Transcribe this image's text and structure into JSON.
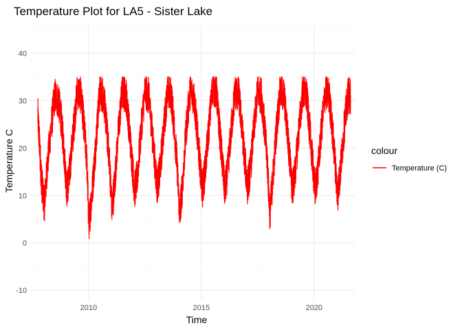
{
  "chart_data": {
    "type": "line",
    "title": "Temperature Plot for LA5 - Sister Lake",
    "xlabel": "Time",
    "ylabel": "Temperature C",
    "xlim": [
      "2007-06-01",
      "2021-11-01"
    ],
    "ylim": [
      -12,
      46
    ],
    "x_ticks": [
      "2010",
      "2015",
      "2020"
    ],
    "y_ticks": [
      "-10",
      "0",
      "10",
      "20",
      "30",
      "40"
    ],
    "grid": true,
    "legend": {
      "title": "colour",
      "position": "right",
      "entries": [
        {
          "label": "Temperature (C)",
          "color": "#ff0000"
        }
      ]
    },
    "series": [
      {
        "name": "Temperature (C)",
        "color": "#ff0000",
        "x": [
          "2007-10-01",
          "2007-11-01",
          "2007-12-01",
          "2008-01-15",
          "2008-03-01",
          "2008-05-01",
          "2008-07-01",
          "2008-09-01",
          "2008-10-15",
          "2008-12-01",
          "2009-01-15",
          "2009-03-01",
          "2009-05-01",
          "2009-07-01",
          "2009-09-01",
          "2009-10-15",
          "2009-12-01",
          "2010-01-05",
          "2010-02-15",
          "2010-04-01",
          "2010-05-15",
          "2010-07-01",
          "2010-09-01",
          "2010-10-15",
          "2010-12-01",
          "2011-01-15",
          "2011-03-01",
          "2011-05-01",
          "2011-07-01",
          "2011-09-01",
          "2011-10-15",
          "2011-12-01",
          "2012-01-15",
          "2012-03-01",
          "2012-05-01",
          "2012-07-01",
          "2012-09-01",
          "2012-10-15",
          "2012-12-01",
          "2013-01-15",
          "2013-03-01",
          "2013-05-01",
          "2013-07-01",
          "2013-09-01",
          "2013-10-15",
          "2013-12-01",
          "2014-01-15",
          "2014-03-01",
          "2014-05-01",
          "2014-07-01",
          "2014-09-01",
          "2014-10-15",
          "2014-12-01",
          "2015-01-15",
          "2015-03-01",
          "2015-05-01",
          "2015-07-01",
          "2015-09-01",
          "2015-10-15",
          "2015-12-01",
          "2016-01-15",
          "2016-03-01",
          "2016-05-01",
          "2016-07-01",
          "2016-09-01",
          "2016-10-15",
          "2016-12-01",
          "2017-01-15",
          "2017-03-01",
          "2017-05-01",
          "2017-07-01",
          "2017-09-01",
          "2017-10-15",
          "2017-12-01",
          "2018-01-15",
          "2018-03-01",
          "2018-05-01",
          "2018-07-01",
          "2018-09-01",
          "2018-10-15",
          "2018-12-01",
          "2019-01-15",
          "2019-03-01",
          "2019-05-01",
          "2019-07-01",
          "2019-09-01",
          "2019-10-15",
          "2019-12-01",
          "2020-01-15",
          "2020-03-01",
          "2020-05-01",
          "2020-07-01",
          "2020-09-01",
          "2020-10-15",
          "2020-12-01",
          "2021-01-15",
          "2021-03-01",
          "2021-05-01",
          "2021-07-01",
          "2021-08-15"
        ],
        "y": [
          27,
          20,
          13,
          8,
          16,
          24,
          31,
          30,
          26,
          19,
          11,
          15,
          24,
          32,
          31,
          25,
          18,
          4,
          9,
          16,
          24,
          32,
          31,
          25,
          18,
          7,
          13,
          24,
          32,
          31,
          25,
          18,
          11,
          14,
          24,
          32,
          31,
          25,
          18,
          12,
          15,
          24,
          32,
          31,
          25,
          17,
          6,
          12,
          24,
          32,
          31,
          25,
          18,
          11,
          15,
          24,
          33,
          32,
          25,
          18,
          11,
          15,
          24,
          32,
          31,
          25,
          18,
          12,
          15,
          24,
          32,
          31,
          25,
          18,
          6,
          13,
          24,
          32,
          31,
          25,
          18,
          11,
          15,
          24,
          32,
          31,
          25,
          18,
          11,
          15,
          24,
          32,
          31,
          25,
          18,
          10,
          15,
          24,
          31,
          31
        ]
      }
    ]
  }
}
